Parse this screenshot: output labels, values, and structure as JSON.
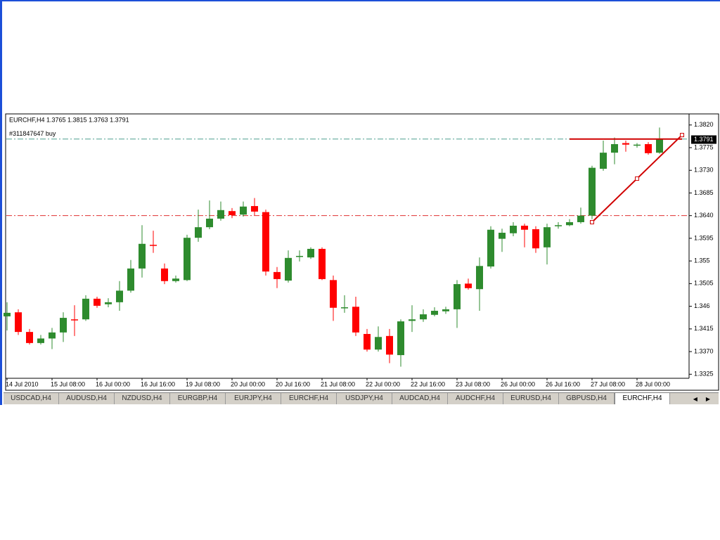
{
  "chart_data": {
    "type": "candlestick",
    "title": "EURCHF,H4  1.3765 1.3815 1.3763 1.3791",
    "categories": [
      "14 Jul 2010",
      null,
      null,
      null,
      "15 Jul 08:00",
      null,
      null,
      null,
      "16 Jul 00:00",
      null,
      null,
      null,
      "16 Jul 16:00",
      null,
      null,
      null,
      "19 Jul 08:00",
      null,
      null,
      null,
      "20 Jul 00:00",
      null,
      null,
      null,
      "20 Jul 16:00",
      null,
      null,
      null,
      "21 Jul 08:00",
      null,
      null,
      null,
      "22 Jul 00:00",
      null,
      null,
      null,
      "22 Jul 16:00",
      null,
      null,
      null,
      "23 Jul 08:00",
      null,
      null,
      null,
      "26 Jul 00:00",
      null,
      null,
      null,
      "26 Jul 16:00",
      null,
      null,
      null,
      "27 Jul 08:00",
      null,
      null,
      null,
      "28 Jul 00:00",
      null,
      null
    ],
    "open": [
      1.344,
      1.3448,
      1.3409,
      1.3387,
      1.3396,
      1.3408,
      1.3434,
      1.3434,
      1.3475,
      1.3464,
      1.3468,
      1.3491,
      1.3535,
      1.3582,
      1.3535,
      1.351,
      1.3512,
      1.3596,
      1.3617,
      1.3634,
      1.3649,
      1.3642,
      1.3659,
      1.3647,
      1.3528,
      1.3511,
      1.3559,
      1.3557,
      1.3574,
      1.3512,
      1.3457,
      1.3459,
      1.3405,
      1.3374,
      1.3401,
      1.3363,
      1.3431,
      1.3434,
      1.3443,
      1.345,
      1.3454,
      1.3505,
      1.3494,
      1.3539,
      1.3594,
      1.3605,
      1.362,
      1.3613,
      1.3577,
      1.3619,
      1.3621,
      1.3627,
      1.364,
      1.3733,
      1.3765,
      1.3784,
      1.3779,
      1.3782,
      1.3765
    ],
    "high": [
      1.3468,
      1.3454,
      1.3415,
      1.3403,
      1.3417,
      1.3448,
      1.3462,
      1.3482,
      1.3479,
      1.3476,
      1.351,
      1.3552,
      1.3621,
      1.361,
      1.3545,
      1.3521,
      1.3602,
      1.3652,
      1.367,
      1.3668,
      1.3655,
      1.3668,
      1.3675,
      1.3652,
      1.3538,
      1.3571,
      1.3571,
      1.3577,
      1.3577,
      1.3521,
      1.3482,
      1.3479,
      1.3415,
      1.342,
      1.3415,
      1.3434,
      1.3462,
      1.3454,
      1.3458,
      1.3459,
      1.3512,
      1.3515,
      1.3557,
      1.3619,
      1.3614,
      1.3627,
      1.3624,
      1.3619,
      1.3624,
      1.3627,
      1.3633,
      1.3656,
      1.3739,
      1.3789,
      1.3795,
      1.3789,
      1.3784,
      1.3786,
      1.3815
    ],
    "low": [
      1.3412,
      1.3403,
      1.3384,
      1.3384,
      1.3375,
      1.3389,
      1.3401,
      1.3431,
      1.3457,
      1.3458,
      1.3451,
      1.3487,
      1.3517,
      1.3566,
      1.3504,
      1.3507,
      1.351,
      1.3588,
      1.3613,
      1.363,
      1.3635,
      1.3638,
      1.3641,
      1.3521,
      1.3496,
      1.3507,
      1.3549,
      1.3554,
      1.3512,
      1.3431,
      1.3447,
      1.3401,
      1.337,
      1.337,
      1.3347,
      1.334,
      1.3409,
      1.3429,
      1.344,
      1.3445,
      1.3417,
      1.3493,
      1.3451,
      1.3535,
      1.3568,
      1.3599,
      1.3577,
      1.3566,
      1.3543,
      1.3614,
      1.3619,
      1.3624,
      1.3633,
      1.3729,
      1.3742,
      1.3767,
      1.3775,
      1.3761,
      1.3763
    ],
    "close": [
      1.3447,
      1.3409,
      1.3387,
      1.3396,
      1.3408,
      1.3437,
      1.3433,
      1.3475,
      1.3461,
      1.3468,
      1.3491,
      1.3535,
      1.3584,
      1.358,
      1.351,
      1.3515,
      1.3596,
      1.3617,
      1.3634,
      1.3651,
      1.3641,
      1.3658,
      1.3648,
      1.3529,
      1.3514,
      1.3556,
      1.356,
      1.3574,
      1.3514,
      1.3457,
      1.3458,
      1.3408,
      1.3374,
      1.3399,
      1.3364,
      1.343,
      1.3434,
      1.3444,
      1.3451,
      1.3454,
      1.3504,
      1.3496,
      1.354,
      1.3612,
      1.3606,
      1.362,
      1.3612,
      1.3575,
      1.3617,
      1.3621,
      1.3627,
      1.364,
      1.3735,
      1.3765,
      1.3782,
      1.3781,
      1.3781,
      1.3764,
      1.3791
    ],
    "up_color": "#2e8b2e",
    "down_color": "#ff0000",
    "ylim": [
      1.3317,
      1.3842
    ],
    "yticks": [
      {
        "value": 1.382,
        "label": "1.3820"
      },
      1.3775,
      {
        "value": 1.373,
        "label": "1.3730"
      },
      1.3685,
      {
        "value": 1.364,
        "label": "1.3640"
      },
      1.3595,
      1.355,
      1.3505,
      1.346,
      1.3415,
      {
        "value": 1.337,
        "label": "1.3370"
      },
      1.3325
    ],
    "hlines": [
      {
        "value": 1.3792,
        "color": "#4f9f8f",
        "label": "#311847647 buy"
      },
      {
        "value": 1.364,
        "color": "#e03030"
      }
    ],
    "segments": [
      {
        "x": [
          50,
          60
        ],
        "y": [
          1.3792,
          1.3792
        ],
        "color": "#d00000"
      },
      {
        "x": [
          52,
          60
        ],
        "y": [
          1.3627,
          1.38
        ],
        "color": "#d00000"
      }
    ]
  },
  "tabs": {
    "items": [
      "USDCAD,H4",
      "AUDUSD,H4",
      "NZDUSD,H4",
      "EURGBP,H4",
      "EURJPY,H4",
      "EURCHF,H4",
      "USDJPY,H4",
      "AUDCAD,H4",
      "AUDCHF,H4",
      "EURUSD,H4",
      "GBPUSD,H4",
      "EURCHF,H4"
    ],
    "active": 11
  }
}
